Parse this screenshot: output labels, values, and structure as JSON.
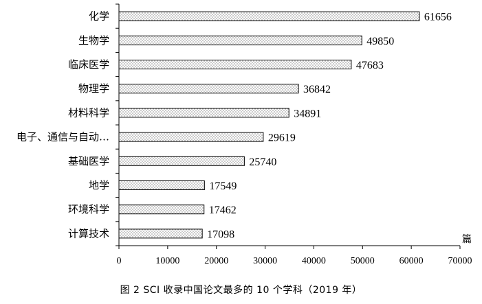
{
  "chart_data": {
    "type": "bar",
    "orientation": "horizontal",
    "categories": [
      "化学",
      "生物学",
      "临床医学",
      "物理学",
      "材料科学",
      "电子、通信与自动…",
      "基础医学",
      "地学",
      "环境科学",
      "计算技术"
    ],
    "values": [
      61656,
      49850,
      47683,
      36842,
      34891,
      29619,
      25740,
      17549,
      17462,
      17098
    ],
    "x_ticks": [
      0,
      10000,
      20000,
      30000,
      40000,
      50000,
      60000,
      70000
    ],
    "xlim": [
      0,
      70000
    ],
    "unit": "篇",
    "caption": "图 2  SCI 收录中国论文最多的 10 个学科（2019 年）",
    "grid": false,
    "bar_fill": "dotted-pattern"
  }
}
